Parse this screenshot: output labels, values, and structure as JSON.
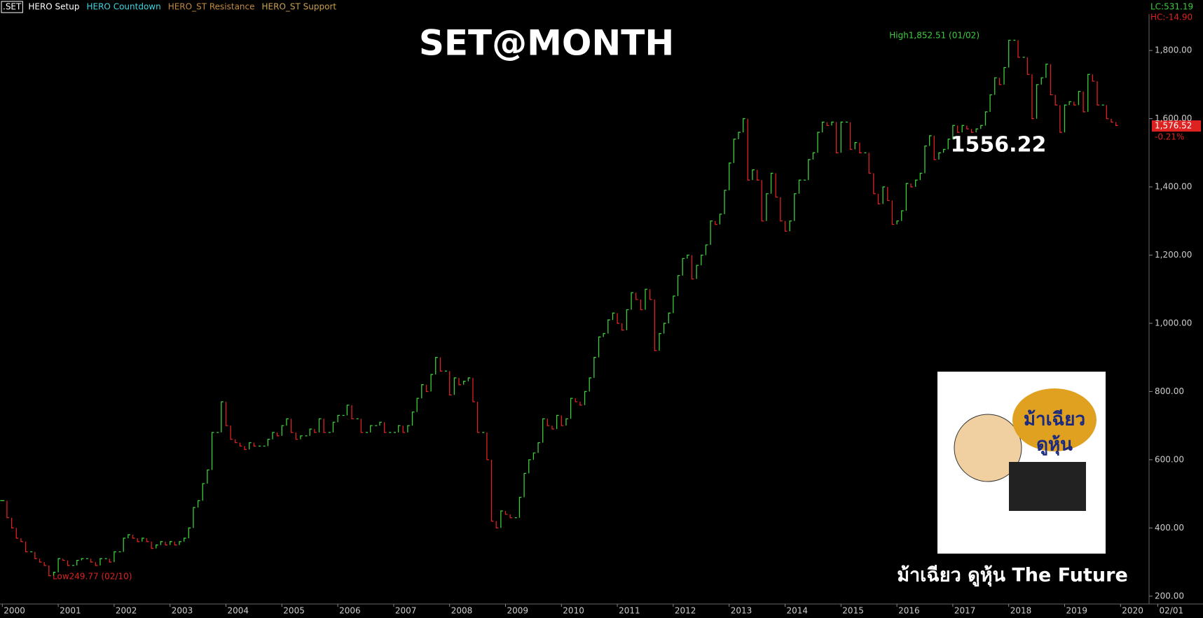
{
  "chart_data": {
    "type": "price-bars",
    "title": "SET@MONTH",
    "toolbar": [
      ".SET",
      "HERO Setup",
      "HERO Countdown",
      "HERO_ST Resistance",
      "HERO_ST Support"
    ],
    "toolbar_colors": [
      "#ffffff",
      "#ffffff",
      "#3dd6e0",
      "#c08a40",
      "#c8a050"
    ],
    "status": {
      "lc": "LC:531.19",
      "hc": "HC:-14.90",
      "last": "1,576.52",
      "change": "-0.21%"
    },
    "annotations": {
      "level": "1556.22",
      "high": "High1,852.51 (01/02)",
      "low": "Low249.77 (02/10)",
      "footer": "ม้าเฉียว ดูหุ้น The Future"
    },
    "logo": {
      "line1": "ม้าเฉียว",
      "line2": "ดูหุ้น"
    },
    "categories": [
      "2000",
      null,
      null,
      null,
      null,
      null,
      null,
      null,
      null,
      null,
      null,
      null,
      "2001",
      null,
      null,
      null,
      null,
      null,
      null,
      null,
      null,
      null,
      null,
      null,
      "2002",
      null,
      null,
      null,
      null,
      null,
      null,
      null,
      null,
      null,
      null,
      null,
      "2003",
      null,
      null,
      null,
      null,
      null,
      null,
      null,
      null,
      null,
      null,
      null,
      "2004",
      null,
      null,
      null,
      null,
      null,
      null,
      null,
      null,
      null,
      null,
      null,
      "2005",
      null,
      null,
      null,
      null,
      null,
      null,
      null,
      null,
      null,
      null,
      null,
      "2006",
      null,
      null,
      null,
      null,
      null,
      null,
      null,
      null,
      null,
      null,
      null,
      "2007",
      null,
      null,
      null,
      null,
      null,
      null,
      null,
      null,
      null,
      null,
      null,
      "2008",
      null,
      null,
      null,
      null,
      null,
      null,
      null,
      null,
      null,
      null,
      null,
      "2009",
      null,
      null,
      null,
      null,
      null,
      null,
      null,
      null,
      null,
      null,
      null,
      "2010",
      null,
      null,
      null,
      null,
      null,
      null,
      null,
      null,
      null,
      null,
      null,
      "2011",
      null,
      null,
      null,
      null,
      null,
      null,
      null,
      null,
      null,
      null,
      null,
      "2012",
      null,
      null,
      null,
      null,
      null,
      null,
      null,
      null,
      null,
      null,
      null,
      "2013",
      null,
      null,
      null,
      null,
      null,
      null,
      null,
      null,
      null,
      null,
      null,
      "2014",
      null,
      null,
      null,
      null,
      null,
      null,
      null,
      null,
      null,
      null,
      null,
      "2015",
      null,
      null,
      null,
      null,
      null,
      null,
      null,
      null,
      null,
      null,
      null,
      "2016",
      null,
      null,
      null,
      null,
      null,
      null,
      null,
      null,
      null,
      null,
      null,
      "2017",
      null,
      null,
      null,
      null,
      null,
      null,
      null,
      null,
      null,
      null,
      null,
      "2018",
      null,
      null,
      null,
      null,
      null,
      null,
      null,
      null,
      null,
      null,
      null,
      "2019",
      null,
      null,
      null,
      null,
      null,
      null,
      null,
      null,
      null,
      null,
      null,
      "2020",
      null,
      null,
      null,
      null,
      null,
      null,
      null,
      "02/01"
    ],
    "series": [
      {
        "up_color": "#3ccc3c",
        "down_color": "#dd2222",
        "values": [
          480,
          430,
          400,
          370,
          360,
          330,
          330,
          310,
          300,
          290,
          260,
          270,
          310,
          305,
          290,
          290,
          305,
          310,
          310,
          300,
          290,
          310,
          310,
          300,
          330,
          330,
          370,
          380,
          370,
          360,
          370,
          360,
          340,
          350,
          360,
          350,
          360,
          350,
          360,
          370,
          400,
          460,
          480,
          530,
          570,
          680,
          680,
          770,
          700,
          660,
          650,
          640,
          630,
          650,
          640,
          640,
          640,
          660,
          680,
          670,
          700,
          720,
          680,
          660,
          670,
          670,
          690,
          680,
          720,
          680,
          680,
          710,
          730,
          730,
          760,
          720,
          720,
          680,
          680,
          700,
          700,
          710,
          680,
          680,
          680,
          700,
          680,
          700,
          740,
          780,
          820,
          800,
          850,
          900,
          860,
          860,
          790,
          840,
          820,
          830,
          840,
          770,
          680,
          680,
          600,
          420,
          400,
          450,
          440,
          430,
          430,
          490,
          560,
          600,
          620,
          650,
          720,
          700,
          690,
          730,
          700,
          720,
          780,
          770,
          760,
          800,
          840,
          900,
          960,
          970,
          1010,
          1030,
          1000,
          980,
          1040,
          1090,
          1070,
          1040,
          1100,
          1070,
          920,
          970,
          1000,
          1030,
          1080,
          1140,
          1190,
          1200,
          1130,
          1170,
          1200,
          1230,
          1300,
          1290,
          1320,
          1390,
          1470,
          1540,
          1560,
          1600,
          1420,
          1450,
          1420,
          1300,
          1380,
          1440,
          1370,
          1300,
          1270,
          1300,
          1380,
          1420,
          1420,
          1480,
          1500,
          1560,
          1590,
          1580,
          1590,
          1500,
          1590,
          1590,
          1510,
          1530,
          1500,
          1500,
          1440,
          1380,
          1350,
          1400,
          1360,
          1290,
          1300,
          1330,
          1410,
          1400,
          1420,
          1440,
          1520,
          1550,
          1480,
          1500,
          1510,
          1540,
          1580,
          1560,
          1580,
          1570,
          1560,
          1570,
          1580,
          1620,
          1670,
          1720,
          1700,
          1750,
          1830,
          1830,
          1780,
          1780,
          1730,
          1600,
          1700,
          1720,
          1760,
          1670,
          1640,
          1560,
          1640,
          1650,
          1640,
          1680,
          1620,
          1730,
          1710,
          1640,
          1640,
          1600,
          1590,
          1580,
          null,
          null,
          null,
          null,
          null,
          null,
          null,
          null,
          null
        ]
      }
    ],
    "ylim": [
      177,
      1948
    ],
    "yticks": [
      {
        "value": 200,
        "label": "200.00"
      },
      {
        "value": 400,
        "label": "400.00"
      },
      {
        "value": 600,
        "label": "600.00"
      },
      {
        "value": 800,
        "label": "800.00"
      },
      {
        "value": 1000,
        "label": "1,000.00"
      },
      {
        "value": 1200,
        "label": "1,200.00"
      },
      {
        "value": 1400,
        "label": "1,400.00"
      },
      {
        "value": 1600,
        "label": "1,600.00"
      },
      {
        "value": 1800,
        "label": "1,800.00"
      }
    ]
  }
}
